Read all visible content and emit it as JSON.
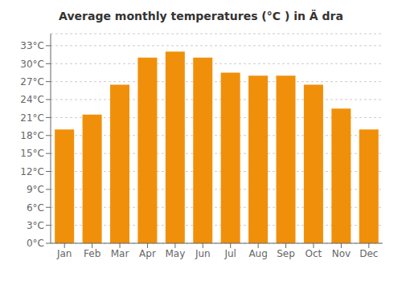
{
  "chart_data": {
    "type": "bar",
    "title": "Average monthly temperatures (°C ) in Ä dra",
    "categories": [
      "Jan",
      "Feb",
      "Mar",
      "Apr",
      "May",
      "Jun",
      "Jul",
      "Aug",
      "Sep",
      "Oct",
      "Nov",
      "Dec"
    ],
    "values": [
      19,
      21.5,
      26.5,
      31,
      32,
      31,
      28.5,
      28,
      28,
      26.5,
      22.5,
      19
    ],
    "color": "#F0900A",
    "ylim": [
      0,
      35
    ],
    "yticks": [
      {
        "value": 0,
        "label": "0°C"
      },
      {
        "value": 3,
        "label": "3°C"
      },
      {
        "value": 6,
        "label": "6°C"
      },
      {
        "value": 9,
        "label": "9°C"
      },
      {
        "value": 12,
        "label": "12°C"
      },
      {
        "value": 15,
        "label": "15°C"
      },
      {
        "value": 18,
        "label": "18°C"
      },
      {
        "value": 21,
        "label": "21°C"
      },
      {
        "value": 24,
        "label": "24°C"
      },
      {
        "value": 27,
        "label": "27°C"
      },
      {
        "value": 30,
        "label": "30°C"
      },
      {
        "value": 33,
        "label": "33°C"
      }
    ],
    "grid": true
  }
}
